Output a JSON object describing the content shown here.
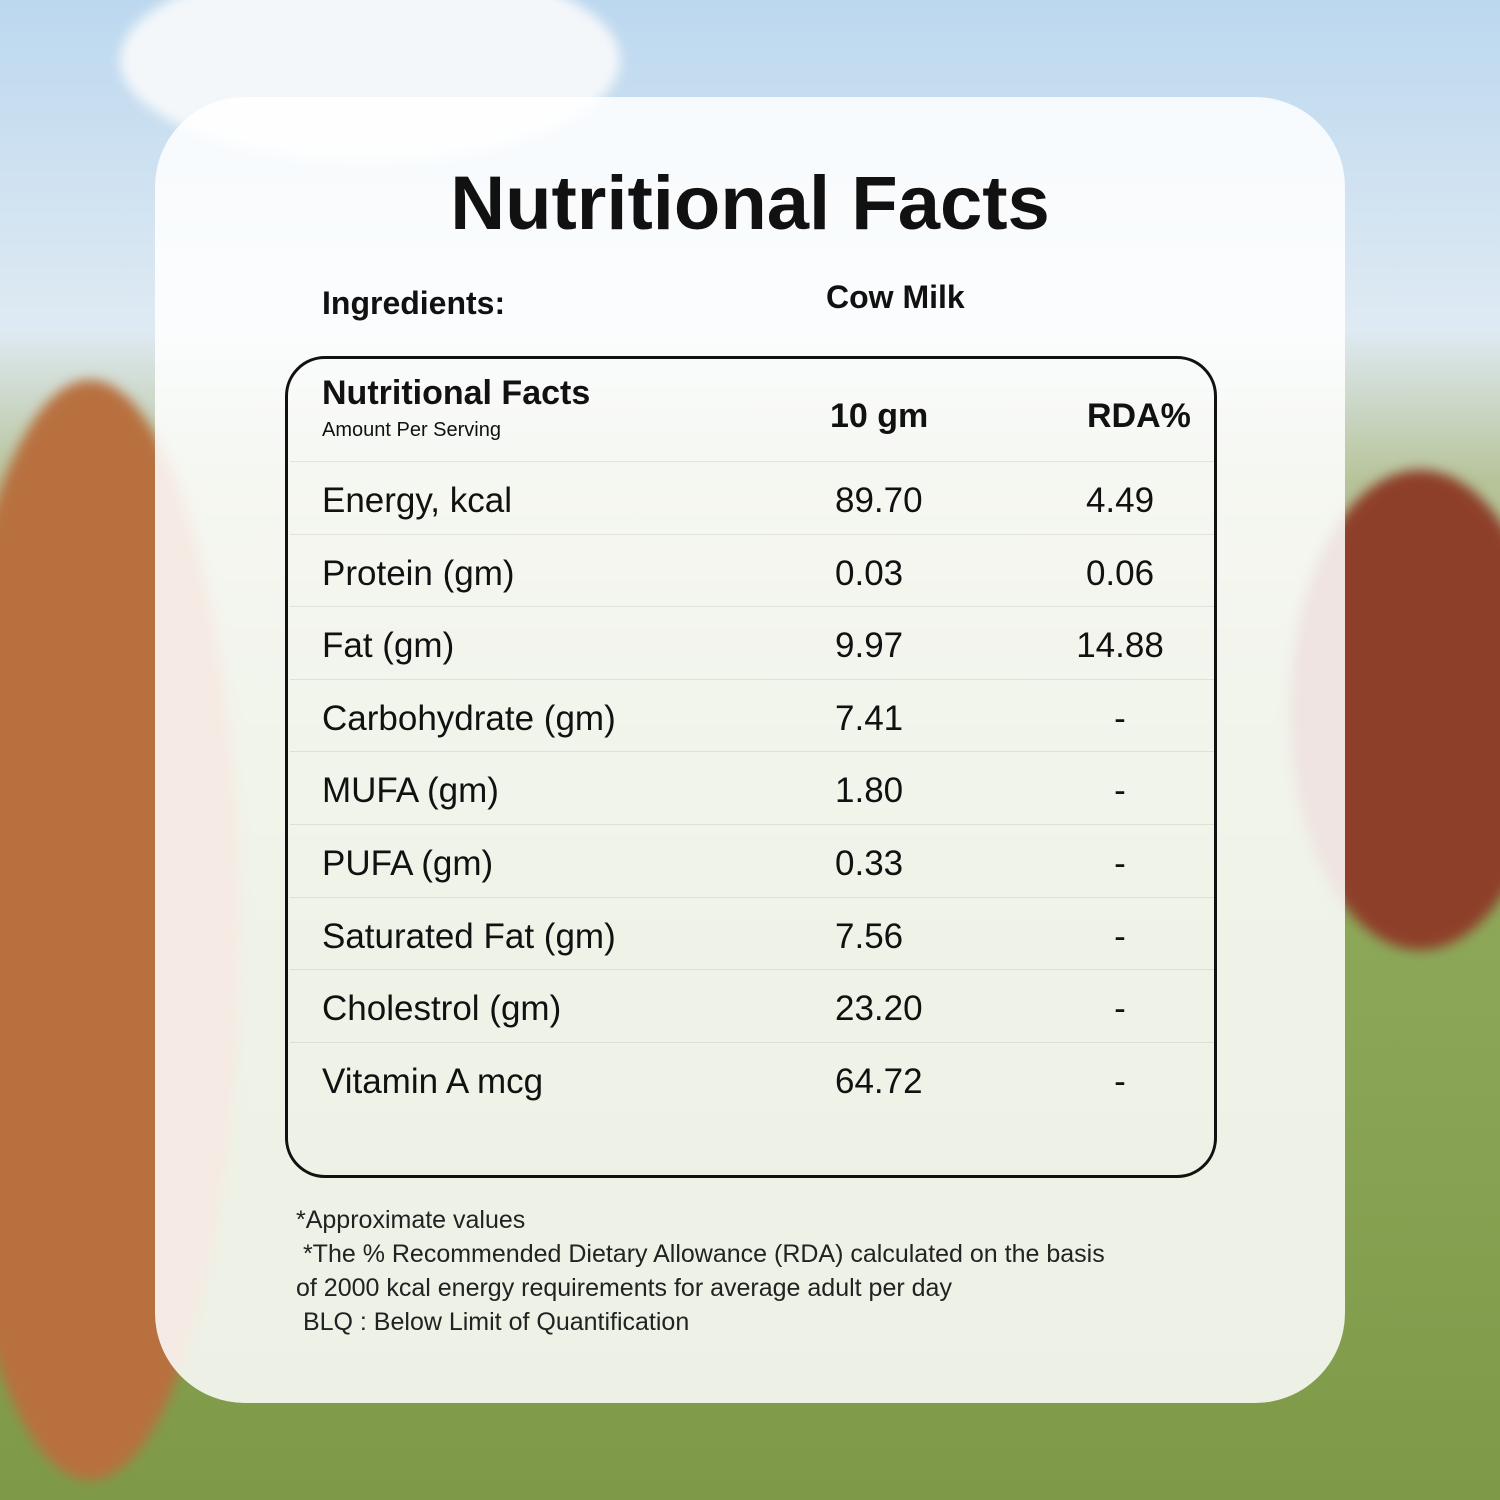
{
  "header": {
    "title": "Nutritional Facts"
  },
  "ingredients": {
    "label": "Ingredients:",
    "value": "Cow Milk"
  },
  "table": {
    "title": "Nutritional Facts",
    "subtitle": "Amount Per Serving",
    "columns": [
      "10 gm",
      "RDA%"
    ],
    "rows": [
      [
        "Energy, kcal",
        "89.70",
        "4.49"
      ],
      [
        "Protein (gm)",
        "0.03",
        "0.06"
      ],
      [
        "Fat (gm)",
        "9.97",
        "14.88"
      ],
      [
        "Carbohydrate (gm)",
        "7.41",
        "-"
      ],
      [
        "MUFA (gm)",
        "1.80",
        "-"
      ],
      [
        "PUFA (gm)",
        "0.33",
        "-"
      ],
      [
        "Saturated Fat (gm)",
        "7.56",
        "-"
      ],
      [
        "Cholestrol (gm)",
        "23.20",
        "-"
      ],
      [
        "Vitamin A mcg",
        "64.72",
        "-"
      ]
    ]
  },
  "footnotes": [
    "*Approximate values",
    " *The % Recommended Dietary Allowance (RDA) calculated on the basis",
    "of 2000 kcal energy requirements for average adult per day",
    " BLQ : Below Limit of Quantification"
  ]
}
